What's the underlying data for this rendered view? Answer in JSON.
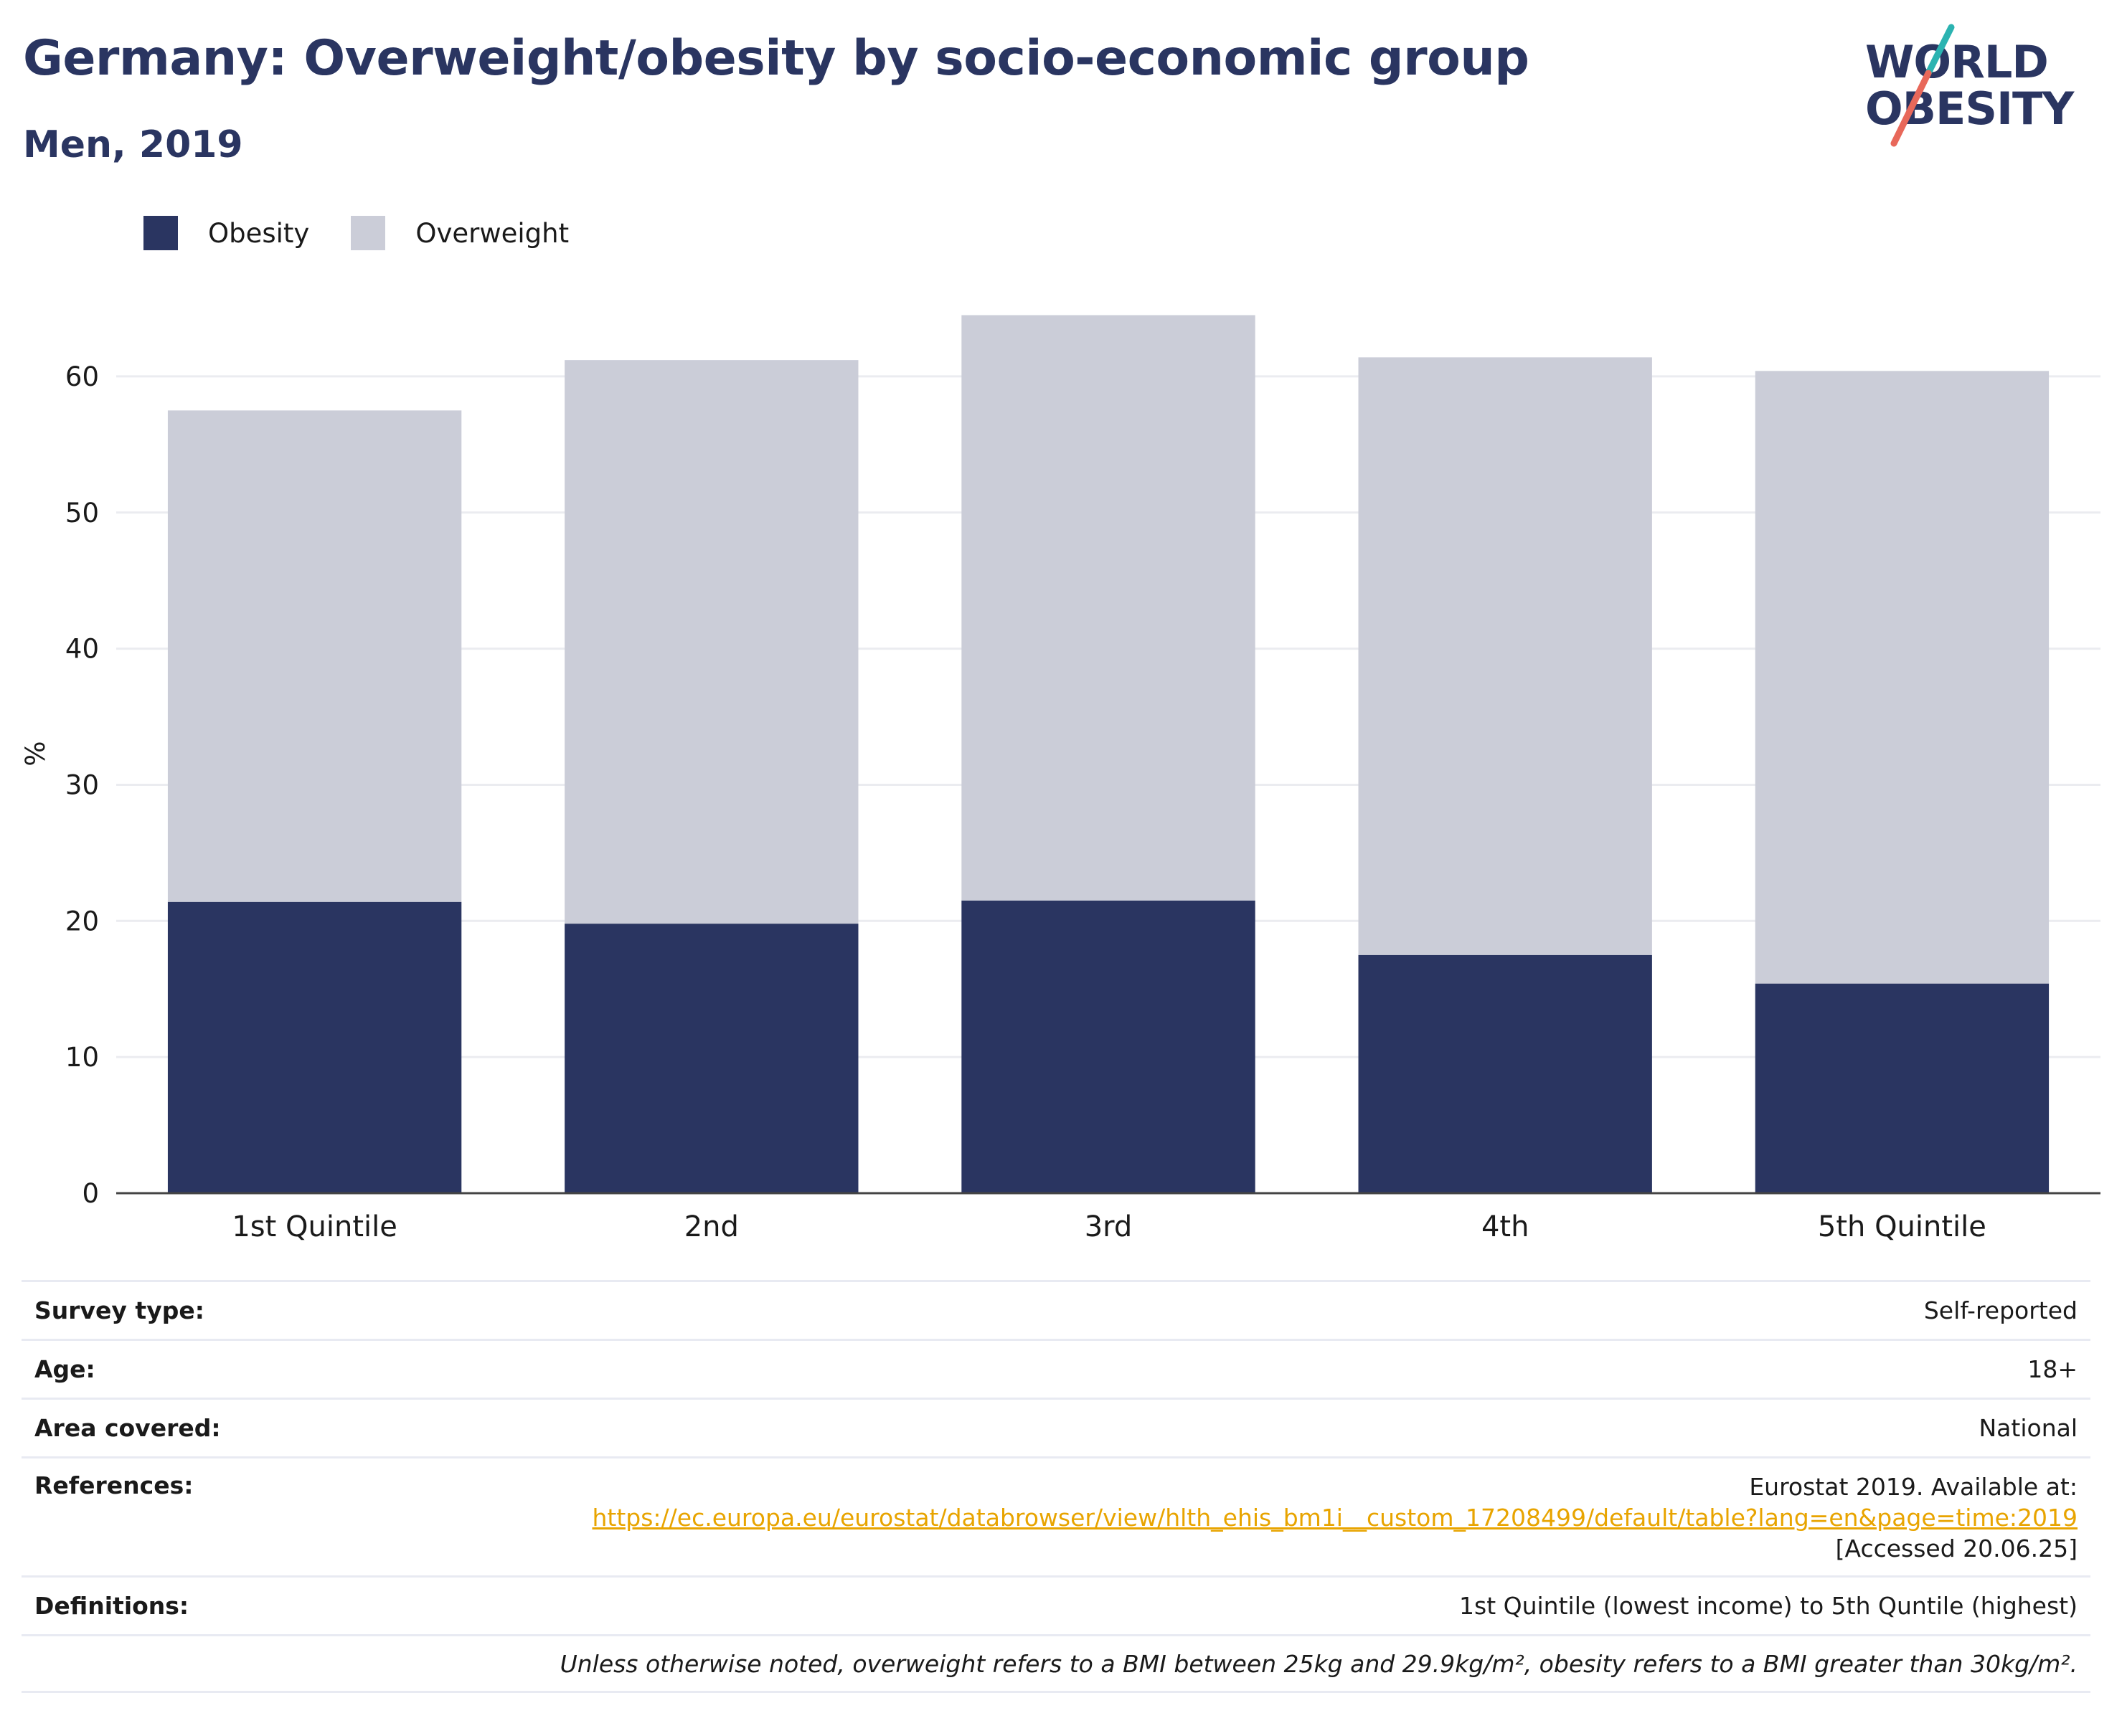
{
  "header": {
    "title": "Germany: Overweight/obesity by socio-economic group",
    "subtitle": "Men, 2019"
  },
  "logo": {
    "line1": "WORLD",
    "line2": "OBESITY",
    "colors": {
      "text": "#2a3561",
      "slash_top": "#2bb3b1",
      "slash_bottom": "#e8685a"
    }
  },
  "colors": {
    "obesity": "#2a3561",
    "overweight": "#cbcdd8",
    "grid": "#ebecf0",
    "axis": "#444444"
  },
  "chart_data": {
    "type": "bar",
    "stacked": true,
    "categories": [
      "1st Quintile",
      "2nd",
      "3rd",
      "4th",
      "5th Quintile"
    ],
    "series": [
      {
        "name": "Obesity",
        "values": [
          21.4,
          19.8,
          21.5,
          17.5,
          15.4
        ]
      },
      {
        "name": "Overweight",
        "values": [
          36.1,
          41.4,
          43.0,
          43.9,
          45.0
        ]
      }
    ],
    "totals": [
      57.5,
      61.2,
      64.5,
      61.4,
      60.4
    ],
    "ylabel": "%",
    "xlabel": "",
    "ylim": [
      0,
      65
    ],
    "yticks": [
      0,
      10,
      20,
      30,
      40,
      50,
      60
    ],
    "grid": true,
    "legend_position": "top-left"
  },
  "info": {
    "survey_type": {
      "label": "Survey type:",
      "value": "Self-reported"
    },
    "age": {
      "label": "Age:",
      "value": "18+"
    },
    "area": {
      "label": "Area covered:",
      "value": "National"
    },
    "references": {
      "label": "References:",
      "prefix": "Eurostat 2019. Available at:",
      "link": "https://ec.europa.eu/eurostat/databrowser/view/hlth_ehis_bm1i__custom_17208499/default/table?lang=en&page=time:2019",
      "suffix": "[Accessed 20.06.25]"
    },
    "definitions": {
      "label": "Definitions:",
      "value": "1st Quintile (lowest income) to 5th Quntile (highest)"
    },
    "note": "Unless otherwise noted, overweight refers to a BMI between 25kg and 29.9kg/m², obesity refers to a BMI greater than 30kg/m²."
  }
}
